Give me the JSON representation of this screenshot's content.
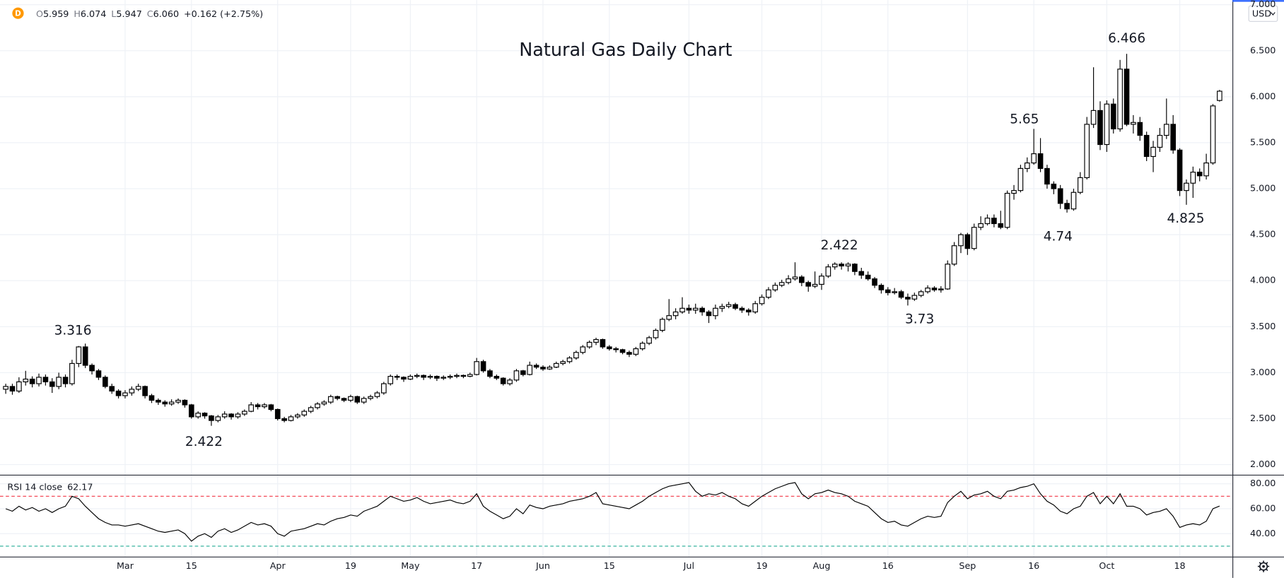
{
  "header": {
    "interval": "D",
    "ohlc": [
      {
        "label": "O",
        "value": "5.959"
      },
      {
        "label": "H",
        "value": "6.074"
      },
      {
        "label": "L",
        "value": "5.947"
      },
      {
        "label": "C",
        "value": "6.060"
      }
    ],
    "change": "+0.162 (+2.75%)",
    "currency": "USD"
  },
  "chart_data": {
    "type": "candlestick",
    "title": "Natural Gas Daily Chart",
    "categories": [
      null,
      null,
      null,
      null,
      null,
      null,
      null,
      null,
      null,
      null,
      null,
      null,
      null,
      null,
      null,
      null,
      null,
      null,
      "Mar",
      null,
      null,
      null,
      null,
      null,
      null,
      null,
      null,
      null,
      "15",
      null,
      null,
      null,
      null,
      null,
      null,
      null,
      null,
      null,
      null,
      null,
      null,
      "Apr",
      null,
      null,
      null,
      null,
      null,
      null,
      null,
      null,
      null,
      null,
      "19",
      null,
      null,
      null,
      null,
      null,
      null,
      null,
      null,
      "May",
      null,
      null,
      null,
      null,
      null,
      null,
      null,
      null,
      null,
      "17",
      null,
      null,
      null,
      null,
      null,
      null,
      null,
      null,
      null,
      "Jun",
      null,
      null,
      null,
      null,
      null,
      null,
      null,
      null,
      null,
      "15",
      null,
      null,
      null,
      null,
      null,
      null,
      null,
      null,
      null,
      null,
      null,
      "Jul",
      null,
      null,
      null,
      null,
      null,
      null,
      null,
      null,
      null,
      null,
      "19",
      null,
      null,
      null,
      null,
      null,
      null,
      null,
      null,
      "Aug",
      null,
      null,
      null,
      null,
      null,
      null,
      null,
      null,
      null,
      "16",
      null,
      null,
      null,
      null,
      null,
      null,
      null,
      null,
      null,
      null,
      null,
      "Sep",
      null,
      null,
      null,
      null,
      null,
      null,
      null,
      null,
      null,
      "16",
      null,
      null,
      null,
      null,
      null,
      null,
      null,
      null,
      null,
      null,
      "Oct",
      null,
      null,
      null,
      null,
      null,
      null,
      null,
      null,
      null,
      null,
      "18",
      null,
      null,
      null,
      null,
      null,
      null
    ],
    "candles": [
      [
        2.82,
        2.88,
        2.77,
        2.85
      ],
      [
        2.85,
        2.88,
        2.76,
        2.8
      ],
      [
        2.8,
        2.95,
        2.78,
        2.9
      ],
      [
        2.9,
        3.02,
        2.86,
        2.93
      ],
      [
        2.93,
        2.96,
        2.84,
        2.88
      ],
      [
        2.88,
        2.99,
        2.85,
        2.95
      ],
      [
        2.95,
        2.98,
        2.86,
        2.9
      ],
      [
        2.9,
        2.94,
        2.78,
        2.85
      ],
      [
        2.85,
        3.0,
        2.82,
        2.95
      ],
      [
        2.95,
        2.98,
        2.84,
        2.88
      ],
      [
        2.88,
        3.14,
        2.86,
        3.1
      ],
      [
        3.1,
        3.29,
        3.06,
        3.28
      ],
      [
        3.28,
        3.316,
        3.05,
        3.08
      ],
      [
        3.08,
        3.1,
        2.98,
        3.02
      ],
      [
        3.02,
        3.04,
        2.92,
        2.95
      ],
      [
        2.95,
        2.97,
        2.83,
        2.85
      ],
      [
        2.85,
        2.88,
        2.77,
        2.8
      ],
      [
        2.8,
        2.82,
        2.72,
        2.75
      ],
      [
        2.75,
        2.81,
        2.72,
        2.78
      ],
      [
        2.78,
        2.85,
        2.75,
        2.82
      ],
      [
        2.82,
        2.88,
        2.8,
        2.85
      ],
      [
        2.85,
        2.86,
        2.72,
        2.75
      ],
      [
        2.75,
        2.77,
        2.67,
        2.7
      ],
      [
        2.7,
        2.72,
        2.65,
        2.68
      ],
      [
        2.68,
        2.7,
        2.63,
        2.66
      ],
      [
        2.66,
        2.71,
        2.64,
        2.68
      ],
      [
        2.68,
        2.72,
        2.66,
        2.7
      ],
      [
        2.7,
        2.71,
        2.62,
        2.65
      ],
      [
        2.65,
        2.66,
        2.5,
        2.52
      ],
      [
        2.52,
        2.58,
        2.5,
        2.56
      ],
      [
        2.56,
        2.57,
        2.5,
        2.53
      ],
      [
        2.53,
        2.54,
        2.422,
        2.48
      ],
      [
        2.48,
        2.54,
        2.46,
        2.52
      ],
      [
        2.52,
        2.58,
        2.5,
        2.55
      ],
      [
        2.55,
        2.56,
        2.49,
        2.52
      ],
      [
        2.52,
        2.57,
        2.5,
        2.55
      ],
      [
        2.55,
        2.6,
        2.53,
        2.58
      ],
      [
        2.58,
        2.68,
        2.57,
        2.65
      ],
      [
        2.65,
        2.67,
        2.6,
        2.63
      ],
      [
        2.63,
        2.67,
        2.61,
        2.65
      ],
      [
        2.65,
        2.66,
        2.58,
        2.6
      ],
      [
        2.6,
        2.61,
        2.48,
        2.5
      ],
      [
        2.5,
        2.52,
        2.46,
        2.48
      ],
      [
        2.48,
        2.54,
        2.47,
        2.52
      ],
      [
        2.52,
        2.56,
        2.5,
        2.54
      ],
      [
        2.54,
        2.6,
        2.52,
        2.58
      ],
      [
        2.58,
        2.64,
        2.56,
        2.62
      ],
      [
        2.62,
        2.68,
        2.6,
        2.66
      ],
      [
        2.66,
        2.7,
        2.64,
        2.68
      ],
      [
        2.68,
        2.76,
        2.66,
        2.74
      ],
      [
        2.74,
        2.75,
        2.7,
        2.72
      ],
      [
        2.72,
        2.73,
        2.68,
        2.7
      ],
      [
        2.7,
        2.76,
        2.68,
        2.74
      ],
      [
        2.74,
        2.75,
        2.66,
        2.68
      ],
      [
        2.68,
        2.74,
        2.66,
        2.72
      ],
      [
        2.72,
        2.76,
        2.7,
        2.74
      ],
      [
        2.74,
        2.8,
        2.72,
        2.78
      ],
      [
        2.78,
        2.9,
        2.76,
        2.88
      ],
      [
        2.88,
        2.98,
        2.86,
        2.96
      ],
      [
        2.96,
        2.98,
        2.92,
        2.95
      ],
      [
        2.95,
        2.96,
        2.9,
        2.93
      ],
      [
        2.93,
        2.98,
        2.92,
        2.96
      ],
      [
        2.96,
        2.99,
        2.94,
        2.97
      ],
      [
        2.97,
        2.98,
        2.92,
        2.95
      ],
      [
        2.95,
        2.98,
        2.93,
        2.96
      ],
      [
        2.96,
        2.97,
        2.91,
        2.94
      ],
      [
        2.94,
        2.97,
        2.92,
        2.95
      ],
      [
        2.95,
        2.98,
        2.93,
        2.96
      ],
      [
        2.96,
        2.99,
        2.94,
        2.97
      ],
      [
        2.97,
        2.98,
        2.94,
        2.96
      ],
      [
        2.96,
        3.0,
        2.95,
        2.98
      ],
      [
        2.98,
        3.16,
        2.97,
        3.12
      ],
      [
        3.12,
        3.14,
        3.0,
        3.02
      ],
      [
        3.02,
        3.04,
        2.94,
        2.96
      ],
      [
        2.96,
        2.98,
        2.92,
        2.94
      ],
      [
        2.94,
        2.95,
        2.86,
        2.88
      ],
      [
        2.88,
        2.94,
        2.86,
        2.92
      ],
      [
        2.92,
        3.04,
        2.9,
        3.02
      ],
      [
        3.02,
        3.03,
        2.96,
        2.98
      ],
      [
        2.98,
        3.12,
        2.97,
        3.08
      ],
      [
        3.08,
        3.1,
        3.04,
        3.06
      ],
      [
        3.06,
        3.08,
        3.02,
        3.04
      ],
      [
        3.04,
        3.08,
        3.03,
        3.06
      ],
      [
        3.06,
        3.12,
        3.05,
        3.1
      ],
      [
        3.1,
        3.14,
        3.08,
        3.12
      ],
      [
        3.12,
        3.18,
        3.1,
        3.16
      ],
      [
        3.16,
        3.24,
        3.14,
        3.22
      ],
      [
        3.22,
        3.3,
        3.2,
        3.28
      ],
      [
        3.28,
        3.35,
        3.26,
        3.33
      ],
      [
        3.33,
        3.38,
        3.3,
        3.36
      ],
      [
        3.36,
        3.37,
        3.26,
        3.28
      ],
      [
        3.28,
        3.3,
        3.24,
        3.26
      ],
      [
        3.26,
        3.28,
        3.22,
        3.25
      ],
      [
        3.25,
        3.26,
        3.2,
        3.22
      ],
      [
        3.22,
        3.24,
        3.17,
        3.2
      ],
      [
        3.2,
        3.28,
        3.18,
        3.26
      ],
      [
        3.26,
        3.34,
        3.24,
        3.32
      ],
      [
        3.32,
        3.4,
        3.3,
        3.38
      ],
      [
        3.38,
        3.48,
        3.36,
        3.46
      ],
      [
        3.46,
        3.6,
        3.44,
        3.58
      ],
      [
        3.58,
        3.8,
        3.56,
        3.62
      ],
      [
        3.62,
        3.7,
        3.58,
        3.66
      ],
      [
        3.66,
        3.82,
        3.64,
        3.7
      ],
      [
        3.7,
        3.74,
        3.64,
        3.68
      ],
      [
        3.68,
        3.75,
        3.64,
        3.7
      ],
      [
        3.7,
        3.72,
        3.62,
        3.66
      ],
      [
        3.66,
        3.68,
        3.54,
        3.62
      ],
      [
        3.62,
        3.74,
        3.58,
        3.7
      ],
      [
        3.7,
        3.75,
        3.66,
        3.72
      ],
      [
        3.72,
        3.77,
        3.7,
        3.74
      ],
      [
        3.74,
        3.76,
        3.68,
        3.7
      ],
      [
        3.7,
        3.72,
        3.65,
        3.68
      ],
      [
        3.68,
        3.7,
        3.62,
        3.66
      ],
      [
        3.66,
        3.78,
        3.64,
        3.75
      ],
      [
        3.75,
        3.85,
        3.73,
        3.82
      ],
      [
        3.82,
        3.93,
        3.8,
        3.9
      ],
      [
        3.9,
        3.98,
        3.88,
        3.95
      ],
      [
        3.95,
        4.01,
        3.93,
        3.98
      ],
      [
        3.98,
        4.06,
        3.96,
        4.02
      ],
      [
        4.02,
        4.2,
        4.0,
        4.04
      ],
      [
        4.04,
        4.06,
        3.94,
        3.98
      ],
      [
        3.98,
        4.0,
        3.88,
        3.94
      ],
      [
        3.94,
        4.1,
        3.92,
        3.96
      ],
      [
        3.96,
        4.08,
        3.9,
        4.05
      ],
      [
        4.05,
        4.18,
        4.03,
        4.15
      ],
      [
        4.15,
        4.2,
        4.12,
        4.18
      ],
      [
        4.18,
        4.2,
        4.12,
        4.16
      ],
      [
        4.16,
        4.2,
        4.1,
        4.18
      ],
      [
        4.18,
        4.19,
        4.06,
        4.1
      ],
      [
        4.1,
        4.14,
        4.02,
        4.06
      ],
      [
        4.06,
        4.1,
        4.0,
        4.02
      ],
      [
        4.02,
        4.04,
        3.92,
        3.95
      ],
      [
        3.95,
        3.97,
        3.86,
        3.9
      ],
      [
        3.9,
        3.93,
        3.84,
        3.87
      ],
      [
        3.87,
        3.92,
        3.85,
        3.88
      ],
      [
        3.88,
        3.9,
        3.8,
        3.82
      ],
      [
        3.82,
        3.86,
        3.73,
        3.8
      ],
      [
        3.8,
        3.87,
        3.78,
        3.84
      ],
      [
        3.84,
        3.9,
        3.82,
        3.88
      ],
      [
        3.88,
        3.95,
        3.86,
        3.92
      ],
      [
        3.92,
        3.94,
        3.88,
        3.9
      ],
      [
        3.9,
        3.94,
        3.87,
        3.91
      ],
      [
        3.91,
        4.22,
        3.9,
        4.18
      ],
      [
        4.18,
        4.42,
        4.16,
        4.38
      ],
      [
        4.38,
        4.52,
        4.3,
        4.5
      ],
      [
        4.5,
        4.52,
        4.28,
        4.35
      ],
      [
        4.35,
        4.62,
        4.33,
        4.58
      ],
      [
        4.58,
        4.7,
        4.55,
        4.62
      ],
      [
        4.62,
        4.72,
        4.6,
        4.68
      ],
      [
        4.68,
        4.72,
        4.58,
        4.62
      ],
      [
        4.62,
        4.76,
        4.56,
        4.58
      ],
      [
        4.58,
        4.98,
        4.56,
        4.95
      ],
      [
        4.95,
        5.04,
        4.88,
        4.98
      ],
      [
        4.98,
        5.26,
        4.96,
        5.22
      ],
      [
        5.22,
        5.34,
        5.18,
        5.28
      ],
      [
        5.28,
        5.65,
        5.26,
        5.38
      ],
      [
        5.38,
        5.55,
        5.18,
        5.22
      ],
      [
        5.22,
        5.26,
        5.0,
        5.05
      ],
      [
        5.05,
        5.08,
        4.94,
        5.0
      ],
      [
        5.0,
        5.04,
        4.78,
        4.84
      ],
      [
        4.84,
        4.88,
        4.74,
        4.78
      ],
      [
        4.78,
        5.0,
        4.76,
        4.96
      ],
      [
        4.96,
        5.18,
        4.94,
        5.12
      ],
      [
        5.12,
        5.78,
        5.1,
        5.7
      ],
      [
        5.7,
        6.32,
        5.66,
        5.85
      ],
      [
        5.85,
        5.95,
        5.42,
        5.48
      ],
      [
        5.48,
        5.96,
        5.4,
        5.92
      ],
      [
        5.92,
        5.98,
        5.6,
        5.65
      ],
      [
        5.65,
        6.4,
        5.62,
        6.3
      ],
      [
        6.3,
        6.466,
        5.68,
        5.7
      ],
      [
        5.7,
        5.8,
        5.6,
        5.72
      ],
      [
        5.72,
        5.78,
        5.52,
        5.58
      ],
      [
        5.58,
        5.62,
        5.3,
        5.35
      ],
      [
        5.35,
        5.52,
        5.18,
        5.45
      ],
      [
        5.45,
        5.66,
        5.4,
        5.58
      ],
      [
        5.58,
        5.98,
        5.54,
        5.7
      ],
      [
        5.7,
        5.8,
        5.38,
        5.42
      ],
      [
        5.42,
        5.44,
        4.92,
        4.98
      ],
      [
        4.98,
        5.1,
        4.825,
        5.06
      ],
      [
        5.06,
        5.24,
        4.9,
        5.18
      ],
      [
        5.18,
        5.22,
        5.08,
        5.14
      ],
      [
        5.14,
        5.38,
        5.1,
        5.28
      ],
      [
        5.28,
        5.92,
        5.26,
        5.9
      ],
      [
        5.959,
        6.074,
        5.947,
        6.06
      ]
    ],
    "up_color": "#ffffff",
    "down_color": "#000000",
    "grid": true,
    "ylim": [
      1.89,
      7.05
    ],
    "yticks": [
      {
        "value": 2,
        "label": "2.000"
      },
      {
        "value": 2.5,
        "label": "2.500"
      },
      {
        "value": 3,
        "label": "3.000"
      },
      {
        "value": 3.5,
        "label": "3.500"
      },
      {
        "value": 4,
        "label": "4.000"
      },
      {
        "value": 4.5,
        "label": "4.500"
      },
      {
        "value": 5,
        "label": "5.000"
      },
      {
        "value": 5.5,
        "label": "5.500"
      },
      {
        "value": 6,
        "label": "6.000"
      },
      {
        "value": 6.5,
        "label": "6.500"
      },
      {
        "value": 7,
        "label": "7.000"
      }
    ],
    "annotations": [
      "3.316",
      "2.422",
      "2.422",
      "3.73",
      "5.65",
      "4.74",
      "6.466",
      "4.825"
    ],
    "rsi": {
      "title": "RSI 14 close",
      "color": "#000000",
      "ylim": [
        21.6,
        86.6
      ],
      "yticks": [
        {
          "value": 40,
          "label": "40.00"
        },
        {
          "value": 60,
          "label": "60.00"
        },
        {
          "value": 80,
          "label": "80.00"
        }
      ],
      "levels": [
        {
          "value": 70,
          "color": "#f23645"
        },
        {
          "value": 30,
          "color": "#22ab94"
        }
      ],
      "values": [
        60,
        58,
        62,
        59,
        61,
        58,
        60,
        57,
        60,
        62,
        70,
        68,
        62,
        57,
        52,
        49,
        47,
        47,
        46,
        47,
        48,
        46,
        44,
        42,
        41,
        42,
        43,
        40,
        34,
        38,
        40,
        37,
        42,
        44,
        41,
        43,
        46,
        49,
        47,
        48,
        46,
        40,
        38,
        42,
        43,
        44,
        46,
        48,
        47,
        50,
        52,
        53,
        55,
        54,
        58,
        60,
        62,
        66,
        70,
        68,
        66,
        67,
        69,
        66,
        64,
        65,
        66,
        67,
        65,
        64,
        66,
        72,
        62,
        58,
        55,
        52,
        54,
        60,
        56,
        63,
        61,
        60,
        62,
        63,
        64,
        66,
        67,
        68,
        70,
        73,
        64,
        63,
        62,
        61,
        60,
        63,
        66,
        70,
        73,
        76,
        78,
        79,
        80,
        81,
        74,
        70,
        72,
        71,
        73,
        70,
        68,
        64,
        62,
        66,
        70,
        73,
        76,
        78,
        80,
        81,
        72,
        68,
        72,
        73,
        75,
        73,
        72,
        70,
        66,
        64,
        62,
        57,
        52,
        49,
        50,
        47,
        46,
        49,
        52,
        54,
        53,
        54,
        65,
        70,
        74,
        68,
        71,
        72,
        74,
        70,
        68,
        74,
        75,
        77,
        78,
        80,
        72,
        66,
        63,
        58,
        56,
        60,
        62,
        70,
        73,
        64,
        70,
        64,
        72,
        62,
        62,
        60,
        55,
        57,
        58,
        60,
        54,
        45,
        47,
        48,
        47,
        50,
        60,
        62.17
      ]
    }
  }
}
